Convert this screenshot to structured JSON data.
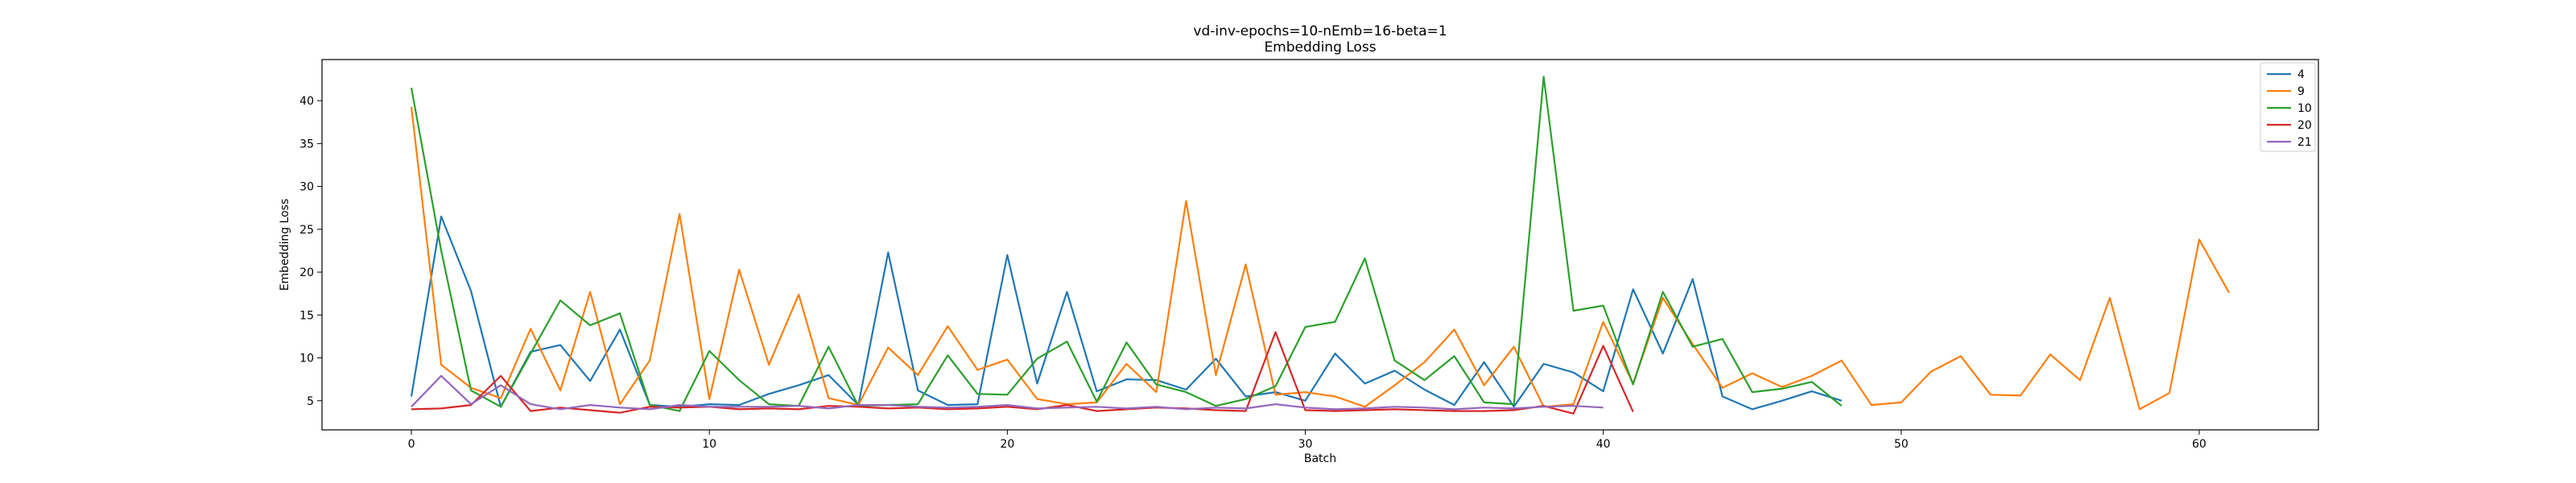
{
  "chart_data": {
    "type": "line",
    "title": "vd-inv-epochs=10-nEmb=16-beta=1",
    "subtitle": "Embedding Loss",
    "xlabel": "Batch",
    "ylabel": "Embedding Loss",
    "xlim": [
      -3,
      64
    ],
    "ylim": [
      1.6,
      44.8
    ],
    "xticks": [
      0,
      10,
      20,
      30,
      40,
      50,
      60
    ],
    "yticks": [
      5,
      10,
      15,
      20,
      25,
      30,
      35,
      40
    ],
    "grid": false,
    "legend_position": "top-right",
    "series": [
      {
        "name": "4",
        "color": "#1f77b4",
        "x": [
          0,
          1,
          2,
          3,
          4,
          5,
          6,
          7,
          8,
          9,
          10,
          11,
          12,
          13,
          14,
          15,
          16,
          17,
          18,
          19,
          20,
          21,
          22,
          23,
          24,
          25,
          26,
          27,
          28,
          29,
          30,
          31,
          32,
          33,
          34,
          35,
          36,
          37,
          38,
          39,
          40,
          41,
          42,
          43,
          44,
          45,
          46,
          47,
          48
        ],
        "values": [
          5.5,
          26.5,
          17.8,
          4.3,
          10.7,
          11.5,
          7.3,
          13.3,
          4.5,
          4.3,
          4.6,
          4.5,
          5.8,
          6.8,
          8.0,
          4.5,
          22.3,
          6.2,
          4.5,
          4.6,
          22.0,
          7.0,
          17.7,
          6.1,
          7.5,
          7.4,
          6.3,
          9.9,
          5.5,
          6.0,
          5.0,
          10.5,
          7.0,
          8.5,
          6.3,
          4.5,
          9.5,
          4.3,
          9.3,
          8.3,
          6.1,
          18.0,
          10.5,
          19.2,
          5.5,
          4.0,
          5.0,
          6.1,
          5.0
        ]
      },
      {
        "name": "9",
        "color": "#ff7f0e",
        "x": [
          0,
          1,
          2,
          3,
          4,
          5,
          6,
          7,
          8,
          9,
          10,
          11,
          12,
          13,
          14,
          15,
          16,
          17,
          18,
          19,
          20,
          21,
          22,
          23,
          24,
          25,
          26,
          27,
          28,
          29,
          30,
          31,
          32,
          33,
          34,
          35,
          36,
          37,
          38,
          39,
          40,
          41,
          42,
          43,
          44,
          45,
          46,
          47,
          48,
          49,
          50,
          51,
          52,
          53,
          54,
          55,
          56,
          57,
          58,
          59,
          60,
          61
        ],
        "values": [
          39.3,
          9.2,
          6.5,
          5.3,
          13.4,
          6.2,
          17.7,
          4.6,
          9.7,
          26.8,
          5.2,
          20.3,
          9.2,
          17.4,
          5.3,
          4.5,
          11.2,
          8.0,
          13.7,
          8.6,
          9.8,
          5.2,
          4.6,
          4.8,
          9.3,
          6.0,
          28.3,
          8.0,
          20.9,
          5.7,
          6.0,
          5.5,
          4.3,
          6.8,
          9.5,
          13.3,
          6.8,
          11.3,
          4.3,
          4.6,
          14.2,
          7.0,
          17.0,
          11.6,
          6.5,
          8.2,
          6.6,
          7.9,
          9.7,
          4.5,
          4.8,
          8.4,
          10.2,
          5.7,
          5.6,
          10.4,
          7.4,
          17.0,
          4.0,
          5.9,
          23.8,
          17.6
        ]
      },
      {
        "name": "10",
        "color": "#2ca02c",
        "x": [
          0,
          1,
          2,
          3,
          4,
          5,
          6,
          7,
          8,
          9,
          10,
          11,
          12,
          13,
          14,
          15,
          16,
          17,
          18,
          19,
          20,
          21,
          22,
          23,
          24,
          25,
          26,
          27,
          28,
          29,
          30,
          31,
          32,
          33,
          34,
          35,
          36,
          37,
          38,
          39,
          40,
          41,
          42,
          43,
          44,
          45,
          46,
          47,
          48
        ],
        "values": [
          41.5,
          22.5,
          6.2,
          4.3,
          10.5,
          16.7,
          13.8,
          15.2,
          4.5,
          3.8,
          10.8,
          7.4,
          4.6,
          4.4,
          11.3,
          4.4,
          4.5,
          4.6,
          10.3,
          5.8,
          5.7,
          9.9,
          11.9,
          4.9,
          11.8,
          6.9,
          6.0,
          4.4,
          5.2,
          6.7,
          13.6,
          14.2,
          21.6,
          9.7,
          7.4,
          10.2,
          4.8,
          4.6,
          42.8,
          15.5,
          16.1,
          6.9,
          17.7,
          11.3,
          12.2,
          6.0,
          6.4,
          7.2,
          4.4
        ]
      },
      {
        "name": "20",
        "color": "#d62728",
        "x": [
          0,
          1,
          2,
          3,
          4,
          5,
          6,
          7,
          8,
          9,
          10,
          11,
          12,
          13,
          14,
          15,
          16,
          17,
          18,
          19,
          20,
          21,
          22,
          23,
          24,
          25,
          26,
          27,
          28,
          29,
          30,
          31,
          32,
          33,
          34,
          35,
          36,
          37,
          38,
          39,
          40,
          41
        ],
        "values": [
          4.0,
          4.1,
          4.5,
          7.9,
          3.8,
          4.2,
          3.9,
          3.6,
          4.3,
          4.2,
          4.3,
          4.0,
          4.1,
          4.0,
          4.4,
          4.3,
          4.1,
          4.2,
          4.0,
          4.1,
          4.3,
          4.0,
          4.5,
          3.8,
          4.0,
          4.2,
          4.1,
          3.9,
          3.8,
          13.0,
          3.9,
          3.8,
          3.9,
          4.0,
          3.9,
          3.8,
          3.8,
          3.9,
          4.4,
          3.5,
          11.4,
          3.7
        ]
      },
      {
        "name": "21",
        "color": "#9467bd",
        "x": [
          0,
          1,
          2,
          3,
          4,
          5,
          6,
          7,
          8,
          9,
          10,
          11,
          12,
          13,
          14,
          15,
          16,
          17,
          18,
          19,
          20,
          21,
          22,
          23,
          24,
          25,
          26,
          27,
          28,
          29,
          30,
          31,
          32,
          33,
          34,
          35,
          36,
          37,
          38,
          39,
          40
        ],
        "values": [
          4.3,
          7.9,
          4.6,
          6.8,
          4.6,
          4.0,
          4.5,
          4.2,
          4.0,
          4.5,
          4.3,
          4.3,
          4.3,
          4.4,
          4.1,
          4.5,
          4.5,
          4.3,
          4.2,
          4.3,
          4.5,
          4.1,
          4.2,
          4.3,
          4.1,
          4.3,
          4.0,
          4.2,
          4.1,
          4.6,
          4.2,
          4.0,
          4.1,
          4.3,
          4.2,
          4.0,
          4.2,
          4.1,
          4.3,
          4.4,
          4.2
        ]
      }
    ]
  }
}
